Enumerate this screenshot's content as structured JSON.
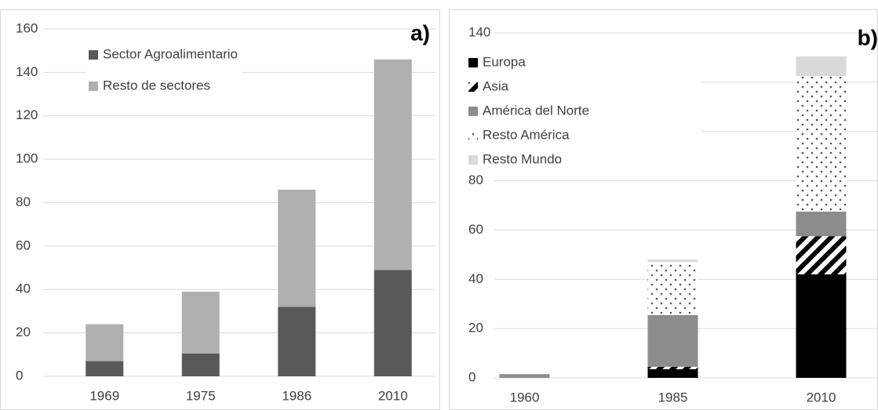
{
  "chart_data": [
    {
      "type": "bar",
      "stacked": true,
      "annotation": "a)",
      "categories": [
        "1969",
        "1975",
        "1986",
        "2010"
      ],
      "series": [
        {
          "name": "Sector Agroalimentario",
          "color": "#595959",
          "values": [
            7,
            10.5,
            32,
            49
          ]
        },
        {
          "name": "Resto de sectores",
          "color": "#afafaf",
          "values": [
            17,
            28.5,
            54,
            97
          ]
        }
      ],
      "ylim": [
        0,
        160
      ],
      "yticks": [
        0,
        20,
        40,
        60,
        80,
        100,
        120,
        140,
        160
      ],
      "grid": true,
      "legend": "top-left"
    },
    {
      "type": "bar",
      "stacked": true,
      "annotation": "b)",
      "categories": [
        "1960",
        "1985",
        "2010"
      ],
      "series": [
        {
          "name": "Europa",
          "color": "#000000",
          "values": [
            0,
            3.5,
            42
          ]
        },
        {
          "name": "Asia",
          "color": "#000000",
          "pattern": "stripes",
          "values": [
            0,
            1,
            15.5
          ]
        },
        {
          "name": "América del Norte",
          "color": "#8c8c8c",
          "values": [
            1.5,
            21,
            10
          ]
        },
        {
          "name": "Resto América",
          "color": "#555555",
          "pattern": "dots",
          "values": [
            0,
            21.5,
            55
          ]
        },
        {
          "name": "Resto Mundo",
          "color": "#d9d9d9",
          "values": [
            0,
            1,
            8
          ]
        }
      ],
      "ylim": [
        0,
        140
      ],
      "yticks": [
        0,
        20,
        40,
        60,
        80,
        100,
        120,
        140
      ],
      "grid": true,
      "legend": "top-left"
    }
  ]
}
